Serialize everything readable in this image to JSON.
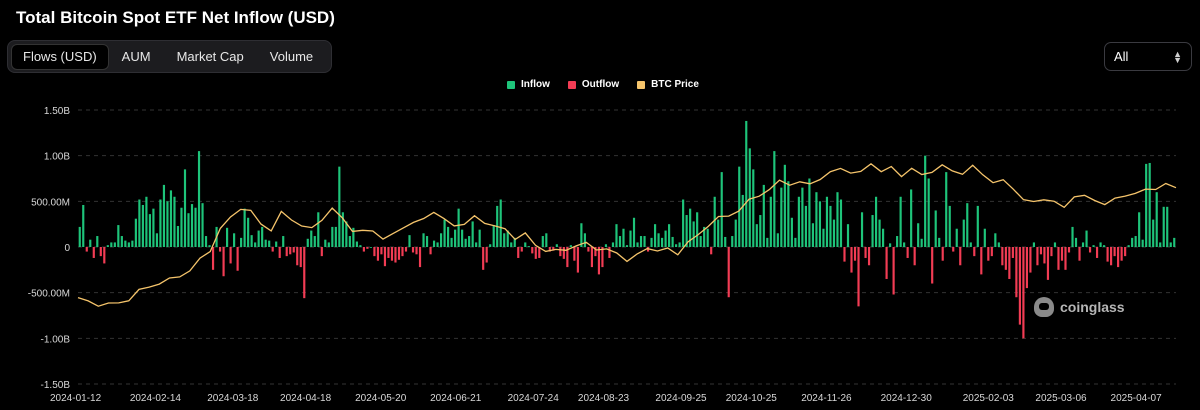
{
  "header": {
    "title": "Total Bitcoin Spot ETF Net Inflow (USD)"
  },
  "tabs": [
    {
      "label": "Flows (USD)",
      "active": true
    },
    {
      "label": "AUM",
      "active": false
    },
    {
      "label": "Market Cap",
      "active": false
    },
    {
      "label": "Volume",
      "active": false
    }
  ],
  "range_select": {
    "value": "All"
  },
  "legend": {
    "inflow": "Inflow",
    "outflow": "Outflow",
    "btc_price": "BTC Price"
  },
  "colors": {
    "inflow": "#1ec47a",
    "outflow": "#f23c54",
    "btc": "#f5c46b",
    "grid": "#333333"
  },
  "watermark": {
    "text": "coinglass"
  },
  "chart_data": {
    "type": "bar",
    "title": "Total Bitcoin Spot ETF Net Inflow (USD)",
    "ylim": [
      -1.5,
      1.5
    ],
    "y_unit": "B USD",
    "y_ticks": [
      {
        "value": 1.5,
        "label": "1.50B"
      },
      {
        "value": 1.0,
        "label": "1.00B"
      },
      {
        "value": 0.5,
        "label": "500.00M"
      },
      {
        "value": 0,
        "label": "0"
      },
      {
        "value": -0.5,
        "label": "-500.00M"
      },
      {
        "value": -1.0,
        "label": "-1.00B"
      },
      {
        "value": -1.5,
        "label": "-1.50B"
      }
    ],
    "x_ticks": [
      "2024-01-12",
      "2024-02-14",
      "2024-03-18",
      "2024-04-18",
      "2024-05-20",
      "2024-06-21",
      "2024-07-24",
      "2024-08-23",
      "2024-09-25",
      "2024-10-25",
      "2024-11-26",
      "2024-12-30",
      "2025-02-03",
      "2025-03-06",
      "2025-04-07"
    ],
    "grid": "horizontal dashed",
    "legend_position": "top-center",
    "flows_first_date": "2024-01-12",
    "flows_last_date": "2025-04-24",
    "flows_B": [
      0.22,
      0.46,
      -0.05,
      0.08,
      -0.12,
      0.12,
      -0.1,
      -0.18,
      0.02,
      0.05,
      0.05,
      0.24,
      0.12,
      0.07,
      0.05,
      0.07,
      0.31,
      0.52,
      0.46,
      0.55,
      0.36,
      0.42,
      0.15,
      0.52,
      0.68,
      0.5,
      0.62,
      0.55,
      0.23,
      0.43,
      0.85,
      0.37,
      0.47,
      0.43,
      1.05,
      0.48,
      0.12,
      0.02,
      -0.25,
      0.22,
      -0.05,
      -0.32,
      0.21,
      -0.18,
      0.15,
      -0.26,
      0.1,
      0.42,
      0.32,
      0.13,
      0.05,
      0.18,
      0.22,
      0.08,
      0.07,
      -0.05,
      0.06,
      -0.12,
      0.12,
      -0.1,
      -0.08,
      -0.06,
      -0.2,
      -0.22,
      -0.56,
      0.09,
      0.18,
      0.12,
      0.38,
      -0.1,
      0.08,
      0.05,
      0.22,
      0.22,
      0.88,
      0.38,
      0.28,
      0.12,
      0.21,
      0.06,
      0.02,
      -0.05,
      -0.02,
      0.0,
      -0.1,
      -0.15,
      -0.08,
      -0.21,
      -0.12,
      -0.15,
      -0.17,
      -0.14,
      -0.1,
      -0.05,
      0.13,
      -0.06,
      -0.08,
      -0.22,
      0.15,
      0.12,
      -0.08,
      0.07,
      0.05,
      0.15,
      0.3,
      0.22,
      0.1,
      0.19,
      0.42,
      0.19,
      0.09,
      0.12,
      0.28,
      0.05,
      0.19,
      -0.25,
      -0.17,
      0.03,
      0.24,
      0.45,
      0.52,
      0.15,
      0.18,
      0.05,
      0.1,
      -0.12,
      -0.05,
      0.05,
      0.01,
      -0.07,
      -0.13,
      -0.12,
      0.12,
      0.15,
      -0.05,
      -0.04,
      0.03,
      -0.1,
      -0.13,
      -0.22,
      0.02,
      -0.15,
      -0.28,
      0.26,
      0.15,
      -0.05,
      -0.22,
      -0.1,
      -0.3,
      -0.22,
      0.03,
      -0.12,
      0.05,
      0.25,
      0.12,
      0.2,
      0.02,
      0.18,
      0.32,
      0.05,
      0.12,
      0.12,
      -0.05,
      0.1,
      0.25,
      0.15,
      0.1,
      0.18,
      0.25,
      0.11,
      0.03,
      0.05,
      0.52,
      0.35,
      0.42,
      0.28,
      0.38,
      0.12,
      0.22,
      0.2,
      -0.08,
      0.55,
      0.3,
      0.82,
      0.11,
      -0.55,
      0.12,
      0.3,
      0.88,
      0.57,
      1.38,
      1.08,
      0.85,
      0.25,
      0.35,
      0.68,
      0.1,
      0.55,
      1.05,
      0.15,
      0.65,
      0.9,
      0.72,
      0.32,
      0.1,
      0.55,
      0.65,
      0.45,
      0.75,
      0.26,
      0.6,
      0.5,
      0.2,
      0.55,
      0.45,
      0.3,
      0.6,
      0.52,
      -0.16,
      0.25,
      -0.28,
      -0.15,
      -0.65,
      0.38,
      -0.12,
      -0.2,
      0.35,
      0.55,
      0.3,
      0.2,
      -0.35,
      0.04,
      -0.52,
      0.12,
      0.55,
      0.05,
      -0.12,
      0.63,
      -0.2,
      0.26,
      0.09,
      1.0,
      0.75,
      -0.4,
      0.4,
      0.1,
      -0.15,
      0.82,
      0.45,
      -0.05,
      0.2,
      -0.2,
      0.3,
      0.48,
      0.05,
      -0.1,
      0.45,
      -0.3,
      0.2,
      -0.15,
      -0.1,
      0.15,
      0.05,
      -0.2,
      -0.25,
      -0.35,
      -0.12,
      -0.55,
      -0.85,
      -1.0,
      -0.45,
      -0.28,
      0.05,
      -0.2,
      -0.08,
      -0.18,
      -0.36,
      -0.1,
      0.05,
      -0.25,
      -0.15,
      -0.25,
      -0.06,
      0.22,
      0.1,
      -0.15,
      0.05,
      0.18,
      -0.06,
      0.02,
      -0.12,
      0.05,
      0.02,
      -0.16,
      -0.2,
      -0.1,
      -0.22,
      -0.15,
      -0.1,
      0.02,
      0.1,
      0.12,
      0.38,
      0.08,
      0.91,
      0.92,
      0.3,
      0.6,
      0.05,
      0.44,
      0.44,
      0.05,
      0.1
    ],
    "btc_price_series": {
      "name": "BTC Price",
      "axis": "secondary (no scale shown)",
      "first_date": "2024-01-12",
      "last_date": "2025-04-24",
      "level_0_to_1": [
        0.18,
        0.16,
        0.15,
        0.14,
        0.14,
        0.17,
        0.22,
        0.25,
        0.26,
        0.27,
        0.3,
        0.33,
        0.4,
        0.45,
        0.55,
        0.62,
        0.68,
        0.66,
        0.6,
        0.55,
        0.64,
        0.62,
        0.58,
        0.57,
        0.62,
        0.66,
        0.62,
        0.56,
        0.55,
        0.56,
        0.5,
        0.52,
        0.58,
        0.6,
        0.62,
        0.66,
        0.6,
        0.58,
        0.6,
        0.63,
        0.6,
        0.57,
        0.55,
        0.52,
        0.54,
        0.47,
        0.44,
        0.43,
        0.45,
        0.48,
        0.48,
        0.45,
        0.44,
        0.42,
        0.4,
        0.42,
        0.45,
        0.44,
        0.44,
        0.43,
        0.5,
        0.52,
        0.58,
        0.62,
        0.63,
        0.68,
        0.72,
        0.74,
        0.78,
        0.82,
        0.82,
        0.83,
        0.8,
        0.84,
        0.87,
        0.9,
        0.89,
        0.87,
        0.92,
        0.88,
        0.9,
        0.87,
        0.9,
        0.85,
        0.88,
        0.91,
        0.89,
        0.88,
        0.9,
        0.86,
        0.82,
        0.83,
        0.8,
        0.72,
        0.7,
        0.73,
        0.71,
        0.69,
        0.75,
        0.73,
        0.72,
        0.7,
        0.73,
        0.76,
        0.75,
        0.77,
        0.79,
        0.81,
        0.8
      ]
    }
  }
}
